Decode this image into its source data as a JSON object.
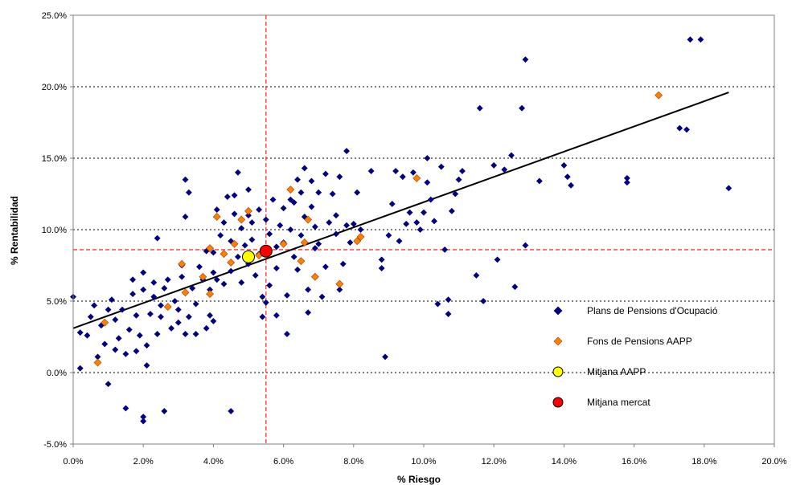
{
  "chart_data": {
    "type": "scatter",
    "title": "",
    "xlabel": "% Riesgo",
    "ylabel": "% Rentabilidad",
    "xlim": [
      0,
      20
    ],
    "ylim": [
      -5,
      25
    ],
    "xticks": [
      0,
      2,
      4,
      6,
      8,
      10,
      12,
      14,
      16,
      18,
      20
    ],
    "yticks": [
      -5,
      0,
      5,
      10,
      15,
      20,
      25
    ],
    "x_tick_labels": [
      "0.0%",
      "2.0%",
      "4.0%",
      "6.0%",
      "8.0%",
      "10.0%",
      "12.0%",
      "14.0%",
      "16.0%",
      "18.0%",
      "20.0%"
    ],
    "y_tick_labels": [
      "-5.0%",
      "0.0%",
      "5.0%",
      "10.0%",
      "15.0%",
      "20.0%",
      "25.0%"
    ],
    "grid": "horizontal dotted",
    "legend_position": "bottom-right inside plot",
    "reference_lines": {
      "vertical_x": 5.5,
      "horizontal_y": 8.6,
      "color": "#ff3333"
    },
    "trendline": {
      "x": [
        0,
        18.7
      ],
      "y": [
        3.1,
        19.6
      ],
      "color": "#000000"
    },
    "series": [
      {
        "name": "Plans de Pensions d'Ocupació",
        "marker": "diamond",
        "color": "#000080",
        "points": [
          [
            0.0,
            5.3
          ],
          [
            0.2,
            0.3
          ],
          [
            0.2,
            2.8
          ],
          [
            0.4,
            2.6
          ],
          [
            0.5,
            3.9
          ],
          [
            0.6,
            4.7
          ],
          [
            0.7,
            1.1
          ],
          [
            0.8,
            3.3
          ],
          [
            0.9,
            2.0
          ],
          [
            1.0,
            -0.8
          ],
          [
            1.0,
            4.4
          ],
          [
            1.1,
            5.1
          ],
          [
            1.2,
            1.6
          ],
          [
            1.2,
            3.7
          ],
          [
            1.3,
            2.4
          ],
          [
            1.4,
            4.4
          ],
          [
            1.5,
            -2.5
          ],
          [
            1.5,
            1.3
          ],
          [
            1.6,
            3.0
          ],
          [
            1.7,
            5.5
          ],
          [
            1.7,
            6.5
          ],
          [
            1.8,
            1.5
          ],
          [
            1.8,
            4.0
          ],
          [
            1.9,
            2.6
          ],
          [
            2.0,
            5.8
          ],
          [
            2.0,
            7.0
          ],
          [
            2.0,
            -3.1
          ],
          [
            2.0,
            -3.4
          ],
          [
            2.1,
            0.5
          ],
          [
            2.1,
            1.9
          ],
          [
            2.2,
            4.1
          ],
          [
            2.3,
            5.3
          ],
          [
            2.3,
            6.3
          ],
          [
            2.4,
            2.7
          ],
          [
            2.4,
            9.4
          ],
          [
            2.5,
            3.9
          ],
          [
            2.5,
            4.7
          ],
          [
            2.6,
            -2.7
          ],
          [
            2.6,
            5.9
          ],
          [
            2.7,
            6.5
          ],
          [
            2.8,
            3.1
          ],
          [
            2.9,
            5.0
          ],
          [
            3.0,
            3.5
          ],
          [
            3.0,
            4.4
          ],
          [
            3.1,
            6.7
          ],
          [
            3.1,
            7.5
          ],
          [
            3.2,
            13.5
          ],
          [
            3.2,
            2.7
          ],
          [
            3.2,
            10.9
          ],
          [
            3.3,
            12.6
          ],
          [
            3.3,
            3.9
          ],
          [
            3.4,
            5.9
          ],
          [
            3.5,
            2.7
          ],
          [
            3.5,
            4.8
          ],
          [
            3.6,
            7.4
          ],
          [
            3.7,
            6.5
          ],
          [
            3.8,
            3.1
          ],
          [
            3.8,
            8.5
          ],
          [
            3.9,
            4.0
          ],
          [
            3.9,
            5.8
          ],
          [
            4.0,
            7.0
          ],
          [
            4.0,
            8.4
          ],
          [
            4.0,
            3.6
          ],
          [
            4.1,
            11.4
          ],
          [
            4.1,
            6.5
          ],
          [
            4.2,
            9.6
          ],
          [
            4.3,
            10.5
          ],
          [
            4.3,
            6.2
          ],
          [
            4.4,
            12.3
          ],
          [
            4.5,
            9.2
          ],
          [
            4.5,
            -2.7
          ],
          [
            4.5,
            7.1
          ],
          [
            4.6,
            11.1
          ],
          [
            4.6,
            12.4
          ],
          [
            4.7,
            8.1
          ],
          [
            4.7,
            14.0
          ],
          [
            4.8,
            6.3
          ],
          [
            4.8,
            10.1
          ],
          [
            4.9,
            8.9
          ],
          [
            5.0,
            7.6
          ],
          [
            5.0,
            11.0
          ],
          [
            5.0,
            12.8
          ],
          [
            5.1,
            9.3
          ],
          [
            5.1,
            10.5
          ],
          [
            5.2,
            6.8
          ],
          [
            5.3,
            8.3
          ],
          [
            5.3,
            11.4
          ],
          [
            5.4,
            5.3
          ],
          [
            5.4,
            3.9
          ],
          [
            5.5,
            4.9
          ],
          [
            5.5,
            10.7
          ],
          [
            5.6,
            9.7
          ],
          [
            5.6,
            6.1
          ],
          [
            5.7,
            12.1
          ],
          [
            5.8,
            7.3
          ],
          [
            5.8,
            8.8
          ],
          [
            5.8,
            4.0
          ],
          [
            5.9,
            10.3
          ],
          [
            6.0,
            11.5
          ],
          [
            6.0,
            9.1
          ],
          [
            6.1,
            2.7
          ],
          [
            6.1,
            5.4
          ],
          [
            6.2,
            12.1
          ],
          [
            6.2,
            10.0
          ],
          [
            6.3,
            8.1
          ],
          [
            6.3,
            11.9
          ],
          [
            6.4,
            13.5
          ],
          [
            6.4,
            7.2
          ],
          [
            6.5,
            9.6
          ],
          [
            6.5,
            12.6
          ],
          [
            6.6,
            14.3
          ],
          [
            6.6,
            10.9
          ],
          [
            6.7,
            5.8
          ],
          [
            6.7,
            4.2
          ],
          [
            6.8,
            13.4
          ],
          [
            6.8,
            11.6
          ],
          [
            6.9,
            8.7
          ],
          [
            6.9,
            10.2
          ],
          [
            7.0,
            9.0
          ],
          [
            7.0,
            12.6
          ],
          [
            7.1,
            5.3
          ],
          [
            7.2,
            7.4
          ],
          [
            7.2,
            13.9
          ],
          [
            7.3,
            10.5
          ],
          [
            7.4,
            12.5
          ],
          [
            7.5,
            9.7
          ],
          [
            7.5,
            11.0
          ],
          [
            7.6,
            5.8
          ],
          [
            7.6,
            13.7
          ],
          [
            7.7,
            7.6
          ],
          [
            7.8,
            15.5
          ],
          [
            7.8,
            10.3
          ],
          [
            7.9,
            9.1
          ],
          [
            8.0,
            10.4
          ],
          [
            8.1,
            12.6
          ],
          [
            8.2,
            10.0
          ],
          [
            8.5,
            14.1
          ],
          [
            8.8,
            7.3
          ],
          [
            8.8,
            7.9
          ],
          [
            8.9,
            1.1
          ],
          [
            9.0,
            9.6
          ],
          [
            9.1,
            11.8
          ],
          [
            9.2,
            14.1
          ],
          [
            9.3,
            9.2
          ],
          [
            9.4,
            13.7
          ],
          [
            9.5,
            10.4
          ],
          [
            9.6,
            11.2
          ],
          [
            9.7,
            14.0
          ],
          [
            9.8,
            10.5
          ],
          [
            9.9,
            10.0
          ],
          [
            10.0,
            11.2
          ],
          [
            10.1,
            15.0
          ],
          [
            10.1,
            13.3
          ],
          [
            10.2,
            12.1
          ],
          [
            10.3,
            10.6
          ],
          [
            10.4,
            4.8
          ],
          [
            10.5,
            14.4
          ],
          [
            10.6,
            8.6
          ],
          [
            10.7,
            4.1
          ],
          [
            10.7,
            5.1
          ],
          [
            10.8,
            11.3
          ],
          [
            10.9,
            12.5
          ],
          [
            11.0,
            13.5
          ],
          [
            11.1,
            14.1
          ],
          [
            11.5,
            6.8
          ],
          [
            11.6,
            18.5
          ],
          [
            11.7,
            5.0
          ],
          [
            12.0,
            14.5
          ],
          [
            12.1,
            7.9
          ],
          [
            12.3,
            14.2
          ],
          [
            12.5,
            15.2
          ],
          [
            12.6,
            6.0
          ],
          [
            12.8,
            18.5
          ],
          [
            12.9,
            21.9
          ],
          [
            12.9,
            8.9
          ],
          [
            13.3,
            13.4
          ],
          [
            14.0,
            14.5
          ],
          [
            14.1,
            13.7
          ],
          [
            14.2,
            13.1
          ],
          [
            15.8,
            13.6
          ],
          [
            15.8,
            13.3
          ],
          [
            17.3,
            17.1
          ],
          [
            17.5,
            17.0
          ],
          [
            17.6,
            23.3
          ],
          [
            17.9,
            23.3
          ],
          [
            18.7,
            12.9
          ]
        ]
      },
      {
        "name": "Fons de Pensions AAPP",
        "marker": "diamond",
        "color": "#ff8000",
        "points": [
          [
            0.7,
            0.7
          ],
          [
            0.9,
            3.5
          ],
          [
            2.7,
            4.6
          ],
          [
            3.1,
            7.6
          ],
          [
            3.2,
            5.6
          ],
          [
            3.7,
            6.7
          ],
          [
            3.9,
            8.7
          ],
          [
            3.9,
            5.5
          ],
          [
            4.1,
            10.9
          ],
          [
            4.3,
            8.3
          ],
          [
            4.5,
            7.7
          ],
          [
            4.6,
            9.0
          ],
          [
            4.8,
            10.7
          ],
          [
            5.0,
            11.3
          ],
          [
            5.3,
            8.2
          ],
          [
            6.0,
            9.0
          ],
          [
            6.2,
            12.8
          ],
          [
            6.5,
            7.8
          ],
          [
            6.6,
            9.1
          ],
          [
            6.7,
            10.7
          ],
          [
            6.9,
            6.7
          ],
          [
            7.6,
            6.2
          ],
          [
            8.1,
            9.2
          ],
          [
            8.2,
            9.5
          ],
          [
            9.8,
            13.6
          ],
          [
            16.7,
            19.4
          ]
        ]
      },
      {
        "name": "Mitjana AAPP",
        "marker": "circle",
        "color": "#ffff00",
        "points": [
          [
            5.0,
            8.1
          ]
        ]
      },
      {
        "name": "Mitjana mercat",
        "marker": "circle",
        "color": "#ff0000",
        "points": [
          [
            5.5,
            8.5
          ]
        ]
      }
    ]
  }
}
